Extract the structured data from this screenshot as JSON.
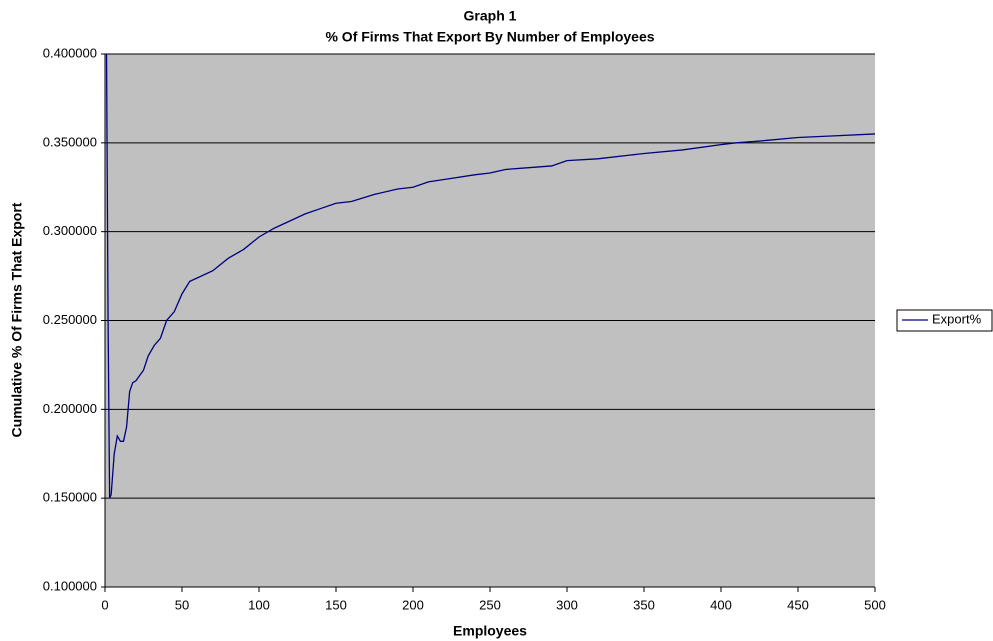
{
  "chart_data": {
    "type": "line",
    "title": "Graph 1",
    "subtitle": "% Of Firms That Export By Number of Employees",
    "x_label": "Employees",
    "y_label": "Cumulative % Of Firms That Export",
    "x": [
      1,
      2,
      3,
      4,
      6,
      8,
      10,
      12,
      14,
      16,
      18,
      20,
      25,
      28,
      32,
      36,
      40,
      45,
      50,
      55,
      60,
      70,
      80,
      90,
      100,
      110,
      120,
      130,
      140,
      150,
      160,
      175,
      190,
      200,
      210,
      225,
      240,
      250,
      260,
      275,
      290,
      300,
      320,
      340,
      350,
      375,
      400,
      410,
      425,
      450,
      475,
      500
    ],
    "series": [
      {
        "name": "Export%",
        "color": "#000080",
        "values": [
          0.4,
          0.25,
          0.15,
          0.152,
          0.175,
          0.185,
          0.182,
          0.182,
          0.19,
          0.21,
          0.215,
          0.216,
          0.222,
          0.23,
          0.236,
          0.24,
          0.25,
          0.255,
          0.265,
          0.272,
          0.274,
          0.278,
          0.285,
          0.29,
          0.297,
          0.302,
          0.306,
          0.31,
          0.313,
          0.316,
          0.317,
          0.321,
          0.324,
          0.325,
          0.328,
          0.33,
          0.332,
          0.333,
          0.335,
          0.336,
          0.337,
          0.34,
          0.341,
          0.343,
          0.344,
          0.346,
          0.349,
          0.35,
          0.351,
          0.353,
          0.354,
          0.355
        ]
      }
    ],
    "xlim": [
      0,
      500
    ],
    "xticks": [
      0,
      50,
      100,
      150,
      200,
      250,
      300,
      350,
      400,
      450,
      500
    ],
    "ylim": [
      0.1,
      0.4
    ],
    "yticks": [
      {
        "value": 0.1,
        "label": "0.100000"
      },
      {
        "value": 0.15,
        "label": "0.150000"
      },
      {
        "value": 0.2,
        "label": "0.200000"
      },
      {
        "value": 0.25,
        "label": "0.250000"
      },
      {
        "value": 0.3,
        "label": "0.300000"
      },
      {
        "value": 0.35,
        "label": "0.350000"
      },
      {
        "value": 0.4,
        "label": "0.400000"
      }
    ],
    "grid": true,
    "legend": "right"
  }
}
